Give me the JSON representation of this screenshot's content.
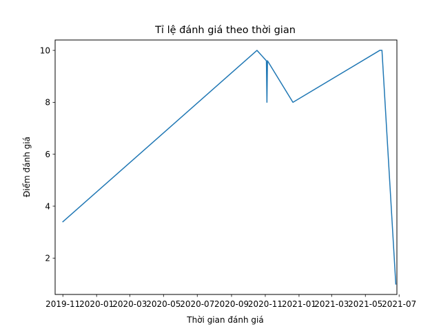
{
  "chart_data": {
    "type": "line",
    "title": "Tỉ lệ đánh giá theo thời gian",
    "xlabel": "Thời gian đánh giá",
    "ylabel": "Điểm đánh giá",
    "x_is_date": true,
    "xlim": [
      "2019-10-18",
      "2021-06-27"
    ],
    "ylim": [
      0.6,
      10.4
    ],
    "x_ticks": [
      "2019-11-01",
      "2020-01-01",
      "2020-03-01",
      "2020-05-01",
      "2020-07-01",
      "2020-09-01",
      "2020-11-01",
      "2021-01-01",
      "2021-03-01",
      "2021-05-01",
      "2021-07-01"
    ],
    "x_tick_labels": [
      "2019-11",
      "2020-01",
      "2020-03",
      "2020-05",
      "2020-07",
      "2020-09",
      "2020-11",
      "2021-01",
      "2021-03",
      "2021-05",
      "2021-07"
    ],
    "y_ticks": [
      2,
      4,
      6,
      8,
      10
    ],
    "y_tick_labels": [
      "2",
      "4",
      "6",
      "8",
      "10"
    ],
    "grid": false,
    "series": [
      {
        "color": "#1f77b4",
        "x": [
          "2019-11-01",
          "2020-10-17",
          "2020-11-03",
          "2020-11-04",
          "2020-11-05",
          "2020-12-21",
          "2021-05-27",
          "2021-05-31",
          "2021-06-25"
        ],
        "y": [
          3.4,
          10.0,
          9.6,
          8.0,
          9.6,
          8.0,
          10.0,
          10.0,
          1.0
        ]
      }
    ]
  }
}
